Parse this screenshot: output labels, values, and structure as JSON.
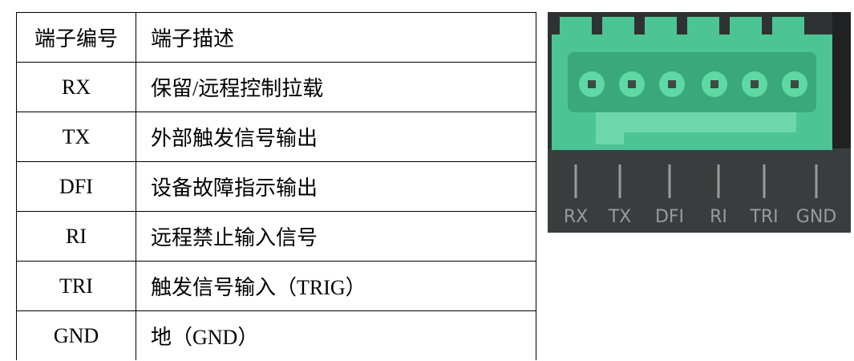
{
  "table": {
    "header": [
      "端子编号",
      "端子描述"
    ],
    "rows": [
      [
        "RX",
        "保留/远程控制拉载"
      ],
      [
        "TX",
        "外部触发信号输出"
      ],
      [
        "DFI",
        "设备故障指示输出"
      ],
      [
        "RI",
        "远程禁止输入信号"
      ],
      [
        "TRI",
        "触发信号输入（TRIG）"
      ],
      [
        "GND",
        "地（GND）"
      ]
    ]
  },
  "photo": {
    "labels": [
      "RX",
      "TX",
      "DFI",
      "RI",
      "TRI",
      "GND"
    ]
  }
}
